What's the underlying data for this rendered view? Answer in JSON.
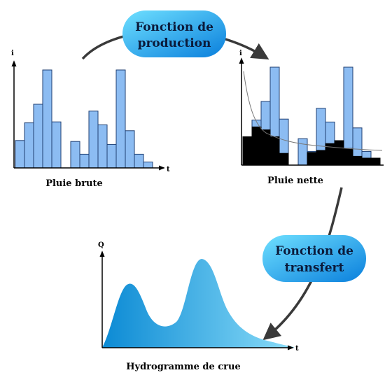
{
  "colors": {
    "bar_fill": "#8cbcf2",
    "bar_stroke": "#1f3f73",
    "net_fill": "#000000",
    "bubble_light": "#5ad2ff",
    "bubble_dark": "#0a82df",
    "hydro_dark": "#0e8fd6",
    "hydro_light": "#7ad6f7",
    "arrow": "#3a3a3a"
  },
  "labels": {
    "production": [
      "Fonction de",
      "production"
    ],
    "transfert": [
      "Fonction de",
      "transfert"
    ],
    "pluie_brute": "Pluie brute",
    "pluie_nette": "Pluie nette",
    "hydrogramme": "Hydrogramme de crue",
    "axis_i": "i",
    "axis_t": "t",
    "axis_q": "Q"
  },
  "rain_brute": [
    0.28,
    0.46,
    0.65,
    1.0,
    0.47,
    0.27,
    0.14,
    0.58,
    0.44,
    0.24,
    1.0,
    0.38,
    0.14,
    0.06
  ],
  "rain_nette": [
    0.29,
    0.39,
    0.36,
    0.29,
    0.12,
    0.0,
    0.13,
    0.15,
    0.22,
    0.25,
    0.17,
    0.09
  ]
}
